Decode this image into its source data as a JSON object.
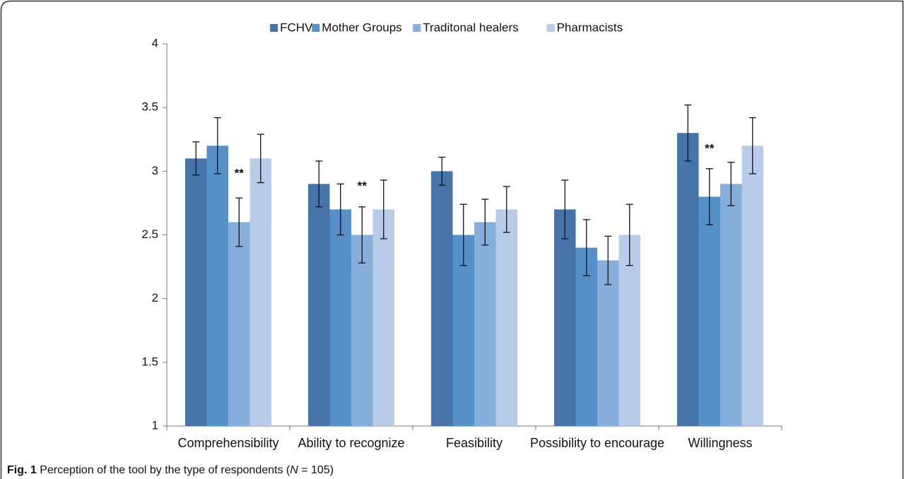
{
  "chart_data": {
    "type": "bar",
    "categories": [
      "Comprehensibility",
      "Ability to recognize",
      "Feasibility",
      "Possibility to encourage",
      "Willingness"
    ],
    "series": [
      {
        "name": "FCHV",
        "color": "#4674a8",
        "values": [
          3.1,
          2.9,
          3.0,
          2.7,
          3.3
        ],
        "errors": [
          0.13,
          0.18,
          0.11,
          0.23,
          0.22
        ]
      },
      {
        "name": "Mother Groups",
        "color": "#5590c8",
        "values": [
          3.2,
          2.7,
          2.5,
          2.4,
          2.8
        ],
        "errors": [
          0.22,
          0.2,
          0.24,
          0.22,
          0.22
        ]
      },
      {
        "name": "Traditonal healers",
        "color": "#86aedb",
        "values": [
          2.6,
          2.5,
          2.6,
          2.3,
          2.9
        ],
        "errors": [
          0.19,
          0.22,
          0.18,
          0.19,
          0.17
        ]
      },
      {
        "name": "Pharmacists",
        "color": "#b6cce8",
        "values": [
          3.1,
          2.7,
          2.7,
          2.5,
          3.2
        ],
        "errors": [
          0.19,
          0.23,
          0.18,
          0.24,
          0.22
        ]
      }
    ],
    "ylim": [
      1,
      4
    ],
    "yticks": [
      1,
      1.5,
      2,
      2.5,
      3,
      3.5,
      4
    ],
    "legend": "top",
    "annotations": [
      "**",
      "**",
      "**"
    ],
    "caption": {
      "label": "Fig. 1",
      "text": [
        "Perception of the tool by the type of respondents (",
        "N",
        " = 105)"
      ]
    }
  }
}
